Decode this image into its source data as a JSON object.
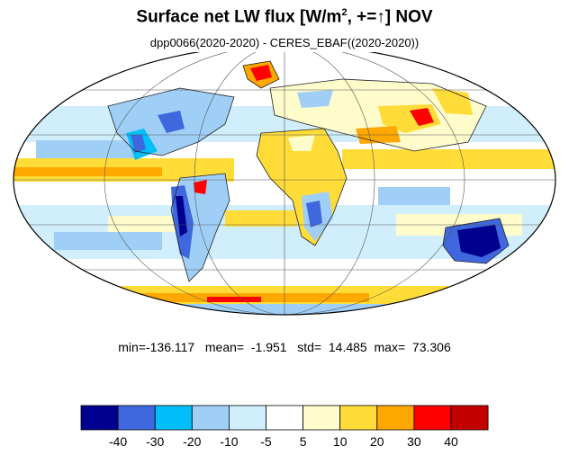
{
  "title": {
    "main": "Surface net LW flux [W/m",
    "sup": "2",
    "rest": ", +=↑]  NOV"
  },
  "subtitle": "dpp0066(2020-2020) - CERES_EBAF((2020-2020))",
  "stats": {
    "min_label": "min=",
    "min": "-136.117",
    "mean_label": "mean=",
    "mean": "-1.951",
    "std_label": "std=",
    "std": "14.485",
    "max_label": "max=",
    "max": "73.306"
  },
  "colorbar": {
    "colors": [
      "#00008f",
      "#3f68de",
      "#00bff8",
      "#9fcff7",
      "#d0eefb",
      "#ffffff",
      "#fffccc",
      "#ffdc38",
      "#ffa800",
      "#ff0000",
      "#c30000"
    ],
    "labels": [
      "-40",
      "-30",
      "-20",
      "-10",
      "-5",
      "5",
      "10",
      "20",
      "30",
      "40"
    ]
  },
  "map": {
    "projection": "mollweide",
    "graticule": true
  }
}
